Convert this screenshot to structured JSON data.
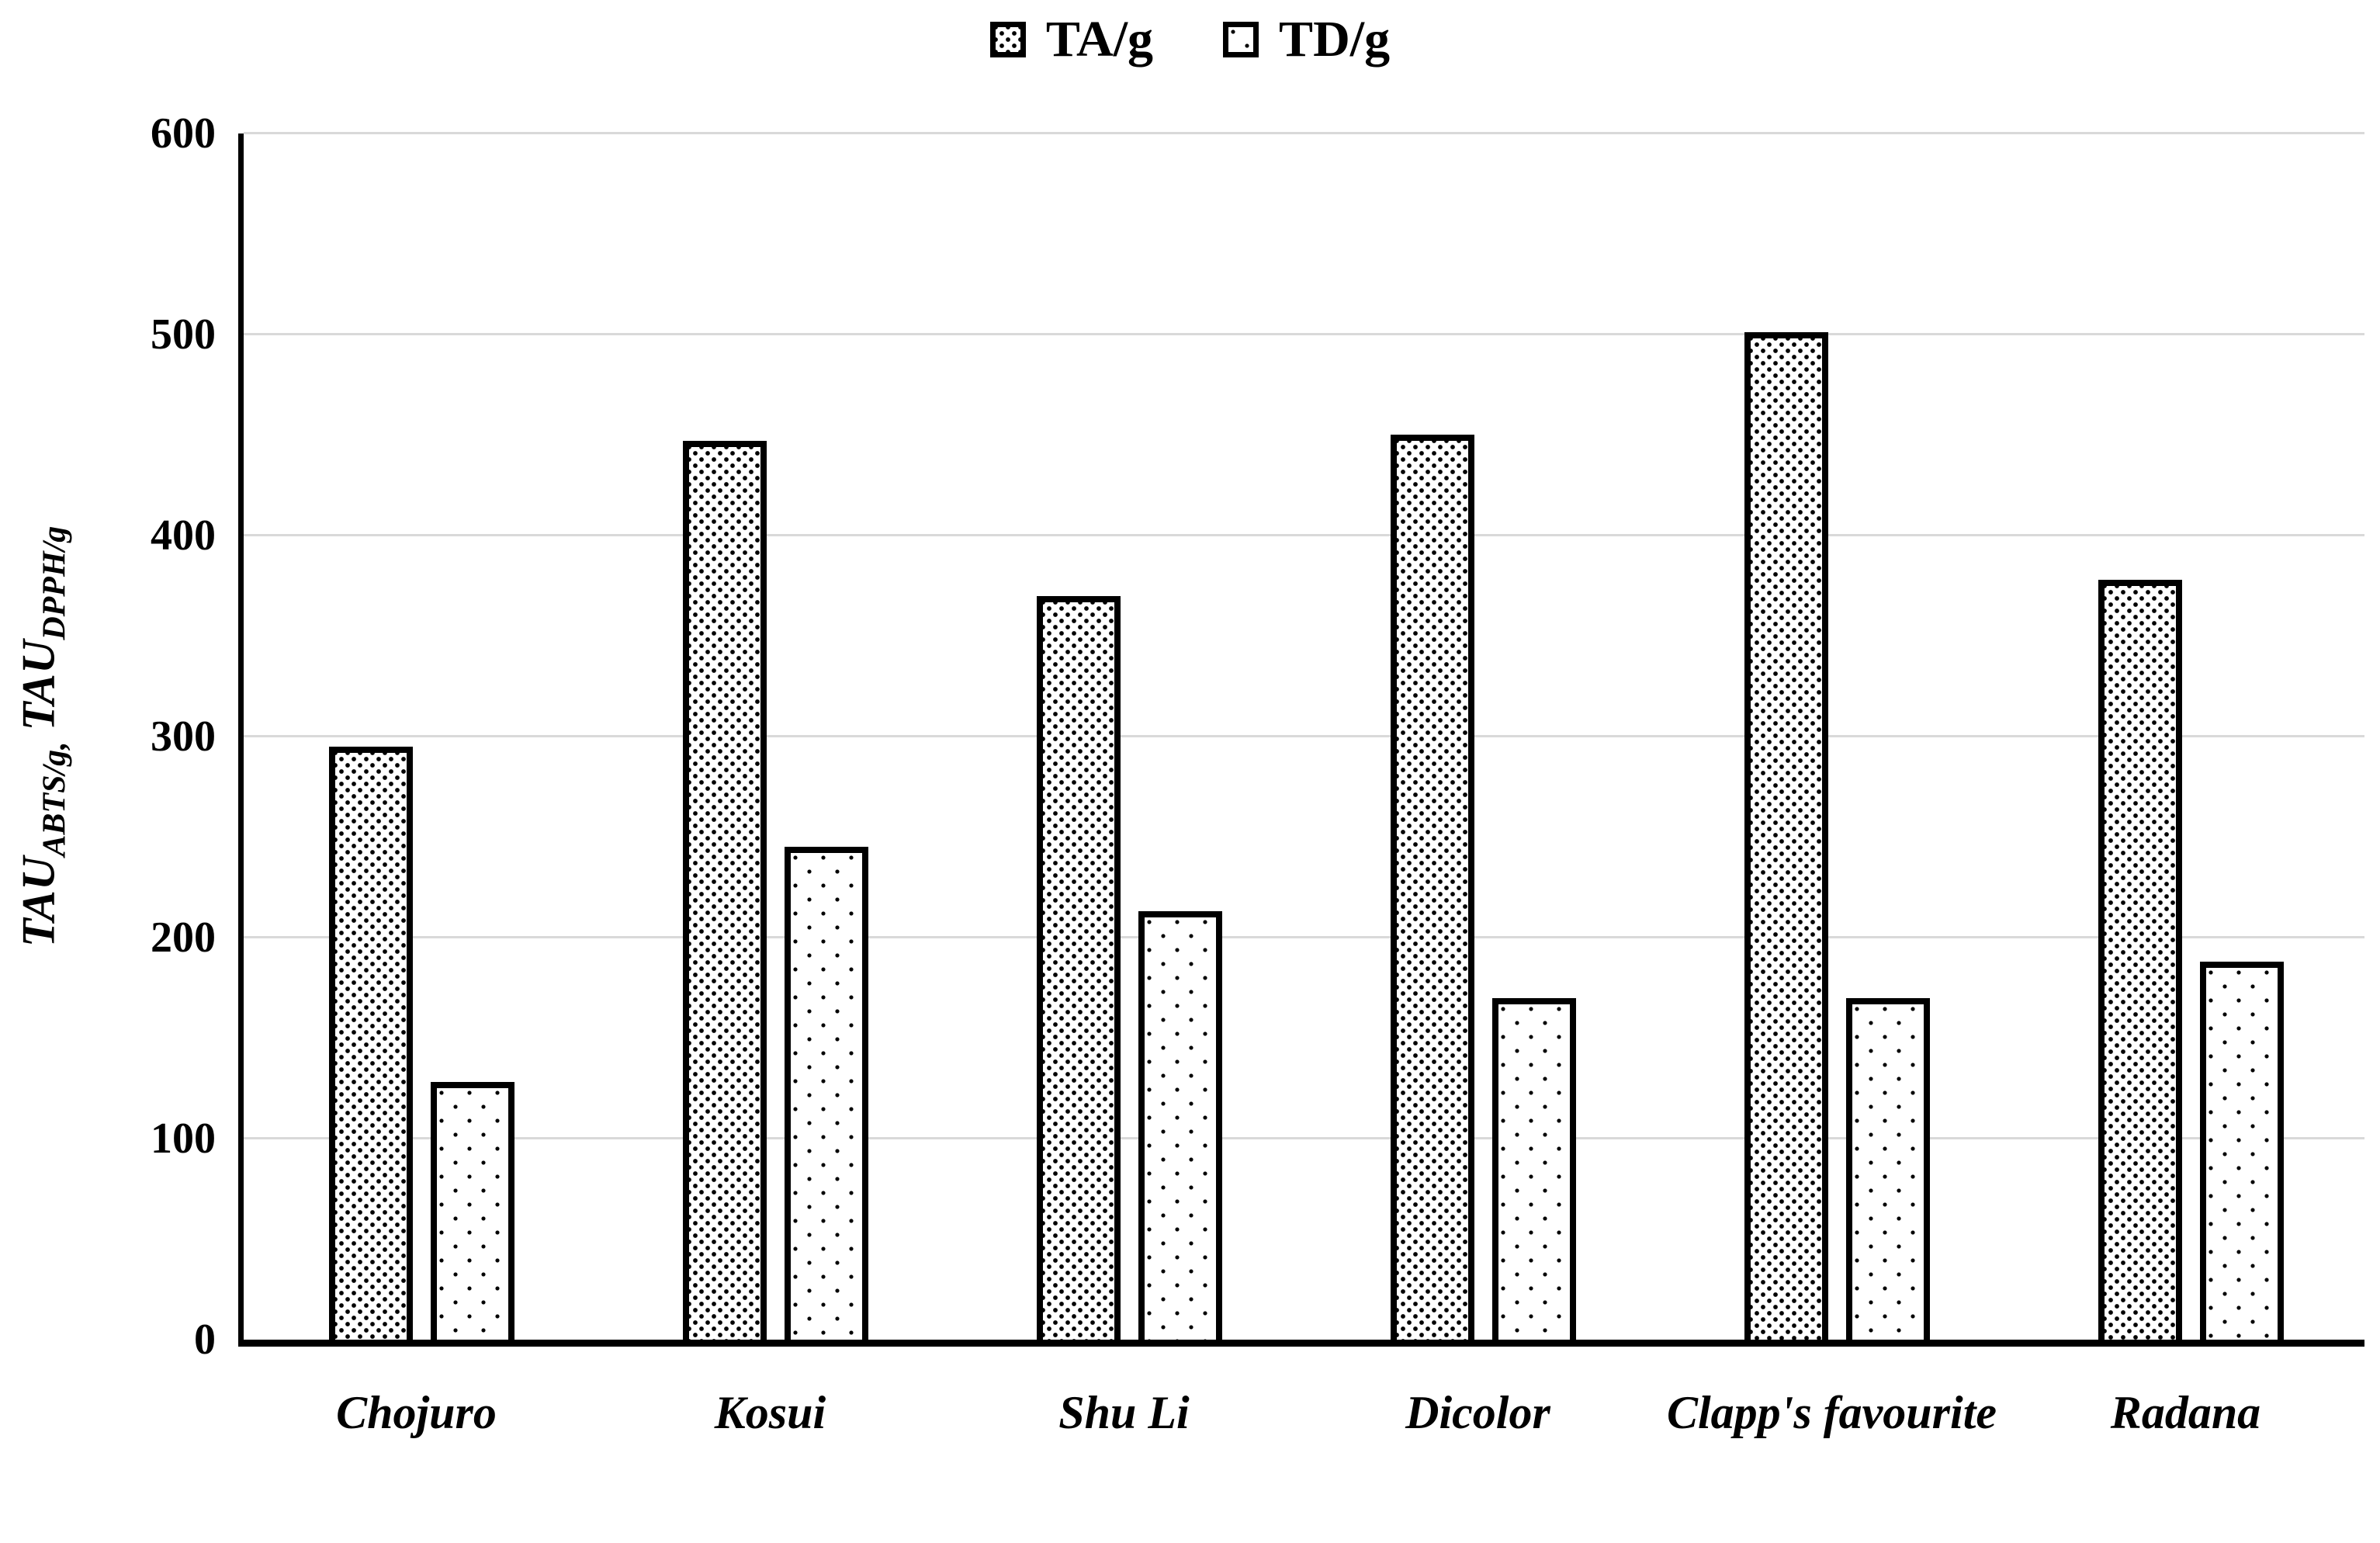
{
  "chart_data": {
    "type": "bar",
    "title": "",
    "categories": [
      "Chojuro",
      "Kosui",
      "Shu Li",
      "Dicolor",
      "Clapp's favourite",
      "Radana"
    ],
    "series": [
      {
        "name": "TA/g",
        "pattern": "dense-dots",
        "values": [
          295,
          447,
          370,
          450,
          501,
          378
        ]
      },
      {
        "name": "TD/g",
        "pattern": "sparse-dots",
        "values": [
          128,
          245,
          213,
          170,
          170,
          188
        ]
      }
    ],
    "xlabel": "",
    "ylabel": "TAU_ABTS/g, TAU_DPPH/g",
    "ylabel_parts": {
      "t1": "TAU",
      "s1": "ABTS/g,",
      "t2": "TAU",
      "s2": "DPPH/g"
    },
    "ylim": [
      0,
      600
    ],
    "yticks": [
      0,
      100,
      200,
      300,
      400,
      500,
      600
    ],
    "grid": "horizontal",
    "legend_position": "top-center",
    "colors": {
      "bar_outline": "#000000",
      "bar_fill": "#ffffff",
      "dot_color": "#000000",
      "gridline": "#d9d9d9",
      "axis": "#000000",
      "text": "#000000",
      "background": "#ffffff"
    }
  }
}
